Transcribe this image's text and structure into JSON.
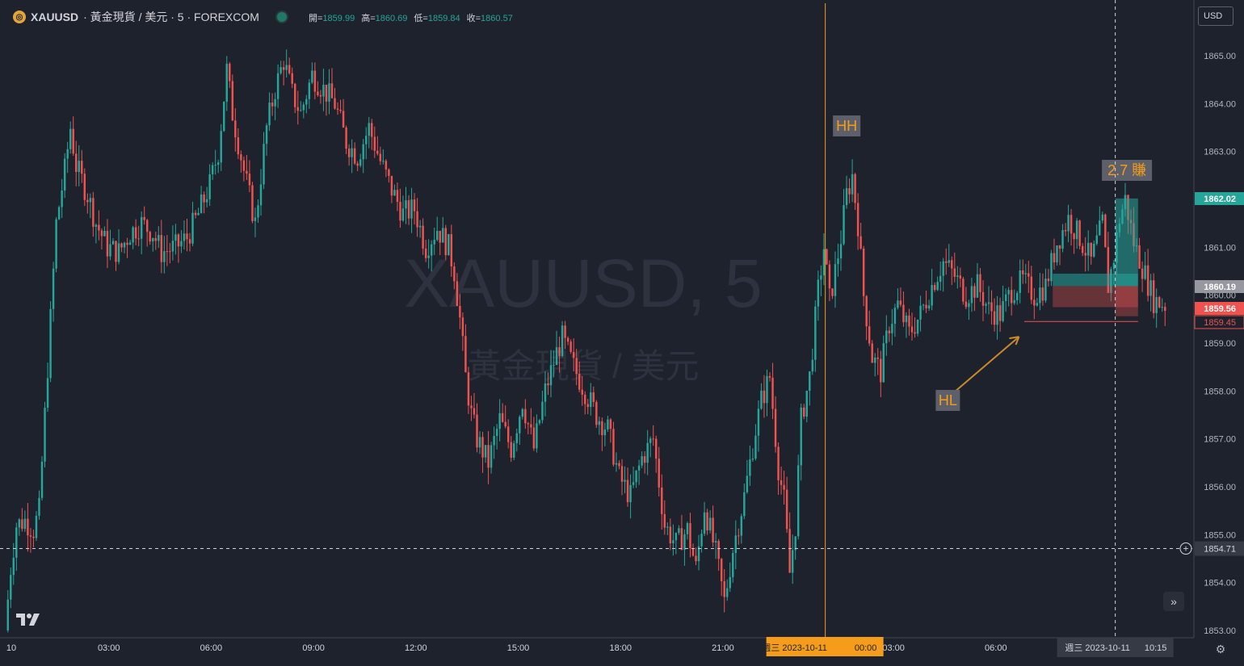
{
  "header": {
    "symbol": "XAUUSD",
    "description": "· 黃金現貨 / 美元 · 5 · FOREXCOM",
    "coin_icon": "gold-coin-icon",
    "open_label": "開=",
    "open_value": "1859.99",
    "high_label": "高=",
    "high_value": "1860.69",
    "low_label": "低=",
    "low_value": "1859.84",
    "close_label": "收=",
    "close_value": "1860.57"
  },
  "currency_button": "USD",
  "watermark": {
    "symbol": "XAUUSD, 5",
    "name": "黃金現貨 / 美元"
  },
  "colors": {
    "background": "#1e222d",
    "up": "#26a69a",
    "down": "#ef5350",
    "accent": "#f59d1a",
    "grid": "#2a2e39"
  },
  "chart_data": {
    "type": "candlestick",
    "timeframe": "5",
    "y_axis": {
      "range": [
        1852.75,
        1865.5
      ],
      "ticks": [
        "1865.00",
        "1864.00",
        "1863.00",
        "1862.00",
        "1861.00",
        "1860.00",
        "1859.00",
        "1858.00",
        "1857.00",
        "1856.00",
        "1855.00",
        "1854.00",
        "1853.00"
      ]
    },
    "x_axis": {
      "ticks": [
        {
          "label": "10",
          "bar": 0
        },
        {
          "label": "03:00",
          "bar": 36
        },
        {
          "label": "06:00",
          "bar": 72
        },
        {
          "label": "09:00",
          "bar": 108
        },
        {
          "label": "12:00",
          "bar": 144
        },
        {
          "label": "15:00",
          "bar": 180
        },
        {
          "label": "18:00",
          "bar": 216
        },
        {
          "label": "21:00",
          "bar": 252
        },
        {
          "label": "03:00",
          "bar": 312
        },
        {
          "label": "06:00",
          "bar": 348
        },
        {
          "label": "00",
          "bar": 408
        }
      ],
      "bars_total": 408
    },
    "candles_path": [
      [
        0,
        1853.0
      ],
      [
        2,
        1854.3
      ],
      [
        4,
        1855.2
      ],
      [
        7,
        1855.3
      ],
      [
        10,
        1855.1
      ],
      [
        12,
        1855.5
      ],
      [
        14,
        1857.5
      ],
      [
        16,
        1859.5
      ],
      [
        18,
        1861.5
      ],
      [
        21,
        1862.6
      ],
      [
        23,
        1863.5
      ],
      [
        25,
        1862.7
      ],
      [
        29,
        1862.1
      ],
      [
        32,
        1861.5
      ],
      [
        36,
        1861.0
      ],
      [
        40,
        1860.9
      ],
      [
        44,
        1861.3
      ],
      [
        48,
        1861.5
      ],
      [
        52,
        1861.3
      ],
      [
        55,
        1860.9
      ],
      [
        60,
        1861.0
      ],
      [
        64,
        1861.2
      ],
      [
        68,
        1861.7
      ],
      [
        72,
        1862.3
      ],
      [
        75,
        1863.0
      ],
      [
        78,
        1864.7
      ],
      [
        80,
        1863.8
      ],
      [
        84,
        1862.6
      ],
      [
        88,
        1861.5
      ],
      [
        92,
        1863.5
      ],
      [
        95,
        1864.3
      ],
      [
        98,
        1864.9
      ],
      [
        101,
        1864.2
      ],
      [
        104,
        1863.8
      ],
      [
        108,
        1864.6
      ],
      [
        112,
        1864.3
      ],
      [
        116,
        1864.0
      ],
      [
        120,
        1863.2
      ],
      [
        124,
        1862.9
      ],
      [
        128,
        1863.5
      ],
      [
        132,
        1862.8
      ],
      [
        136,
        1862.2
      ],
      [
        140,
        1861.7
      ],
      [
        144,
        1861.8
      ],
      [
        148,
        1861.0
      ],
      [
        152,
        1861.4
      ],
      [
        156,
        1861.0
      ],
      [
        158,
        1860.5
      ],
      [
        160,
        1859.5
      ],
      [
        162,
        1858.3
      ],
      [
        164,
        1857.5
      ],
      [
        166,
        1857.0
      ],
      [
        170,
        1856.5
      ],
      [
        174,
        1857.4
      ],
      [
        178,
        1856.8
      ],
      [
        182,
        1857.8
      ],
      [
        186,
        1856.8
      ],
      [
        190,
        1858.0
      ],
      [
        194,
        1858.8
      ],
      [
        196,
        1859.1
      ],
      [
        200,
        1858.5
      ],
      [
        204,
        1858.0
      ],
      [
        208,
        1857.5
      ],
      [
        212,
        1857.2
      ],
      [
        216,
        1856.2
      ],
      [
        220,
        1855.8
      ],
      [
        224,
        1856.6
      ],
      [
        228,
        1857.0
      ],
      [
        232,
        1855.2
      ],
      [
        236,
        1854.8
      ],
      [
        240,
        1855.1
      ],
      [
        243,
        1854.3
      ],
      [
        246,
        1855.6
      ],
      [
        250,
        1854.6
      ],
      [
        253,
        1853.6
      ],
      [
        256,
        1854.7
      ],
      [
        260,
        1855.8
      ],
      [
        264,
        1857.2
      ],
      [
        266,
        1857.8
      ],
      [
        269,
        1858.3
      ],
      [
        272,
        1856.4
      ],
      [
        274,
        1855.7
      ],
      [
        276,
        1854.2
      ],
      [
        278,
        1855.2
      ],
      [
        280,
        1857.4
      ],
      [
        283,
        1858.3
      ],
      [
        286,
        1860.1
      ],
      [
        288,
        1861.0
      ],
      [
        290,
        1859.9
      ],
      [
        292,
        1860.5
      ],
      [
        294,
        1861.2
      ],
      [
        296,
        1862.1
      ],
      [
        298,
        1862.5
      ],
      [
        300,
        1861.5
      ],
      [
        302,
        1860.0
      ],
      [
        305,
        1858.7
      ],
      [
        308,
        1858.4
      ],
      [
        311,
        1859.4
      ],
      [
        314,
        1859.8
      ],
      [
        318,
        1859.2
      ],
      [
        322,
        1859.6
      ],
      [
        326,
        1860.2
      ],
      [
        330,
        1860.7
      ],
      [
        334,
        1860.4
      ],
      [
        338,
        1860.0
      ],
      [
        342,
        1860.2
      ],
      [
        346,
        1859.7
      ],
      [
        350,
        1859.6
      ],
      [
        354,
        1860.1
      ],
      [
        358,
        1860.3
      ],
      [
        362,
        1860.0
      ],
      [
        366,
        1860.2
      ],
      [
        370,
        1861.1
      ],
      [
        374,
        1861.6
      ],
      [
        378,
        1861.2
      ],
      [
        382,
        1860.7
      ],
      [
        386,
        1861.5
      ],
      [
        388,
        1860.2
      ],
      [
        390,
        1860.8
      ],
      [
        392,
        1861.6
      ],
      [
        394,
        1862.0
      ],
      [
        397,
        1861.1
      ],
      [
        400,
        1860.6
      ],
      [
        404,
        1859.9
      ],
      [
        408,
        1859.8
      ]
    ],
    "crosshair": {
      "price": "1854.71",
      "time_label": "週三 2023-10-11",
      "time_value": "10:15",
      "bar": 390
    },
    "day_separator": {
      "label_prefix": "週三 2023-10-11",
      "label_time": "00:00",
      "bar": 288
    },
    "price_labels": [
      {
        "value": "1862.02",
        "color": "#26a69a"
      },
      {
        "value": "1860.19",
        "color": "#9598a1"
      },
      {
        "value": "1859.56",
        "color": "#ef5350"
      },
      {
        "value": "1859.45",
        "color": "#ef5350"
      }
    ],
    "annotations": {
      "hh": "HH",
      "hl": "HL",
      "profit": "2.7 賺"
    },
    "positions": [
      {
        "type": "long",
        "entry": 1860.19,
        "target": 1862.02,
        "stop": 1859.56,
        "start_bar": 390,
        "end_bar": 398
      },
      {
        "type": "long",
        "entry": 1860.19,
        "target": 1860.45,
        "stop": 1859.75,
        "start_bar": 368,
        "end_bar": 398
      }
    ],
    "support_line": {
      "price": 1859.45,
      "start_bar": 358,
      "end_bar": 398
    },
    "arrow": {
      "from": [
        325,
        1858.0
      ],
      "to": [
        355,
        1859.2
      ]
    }
  }
}
